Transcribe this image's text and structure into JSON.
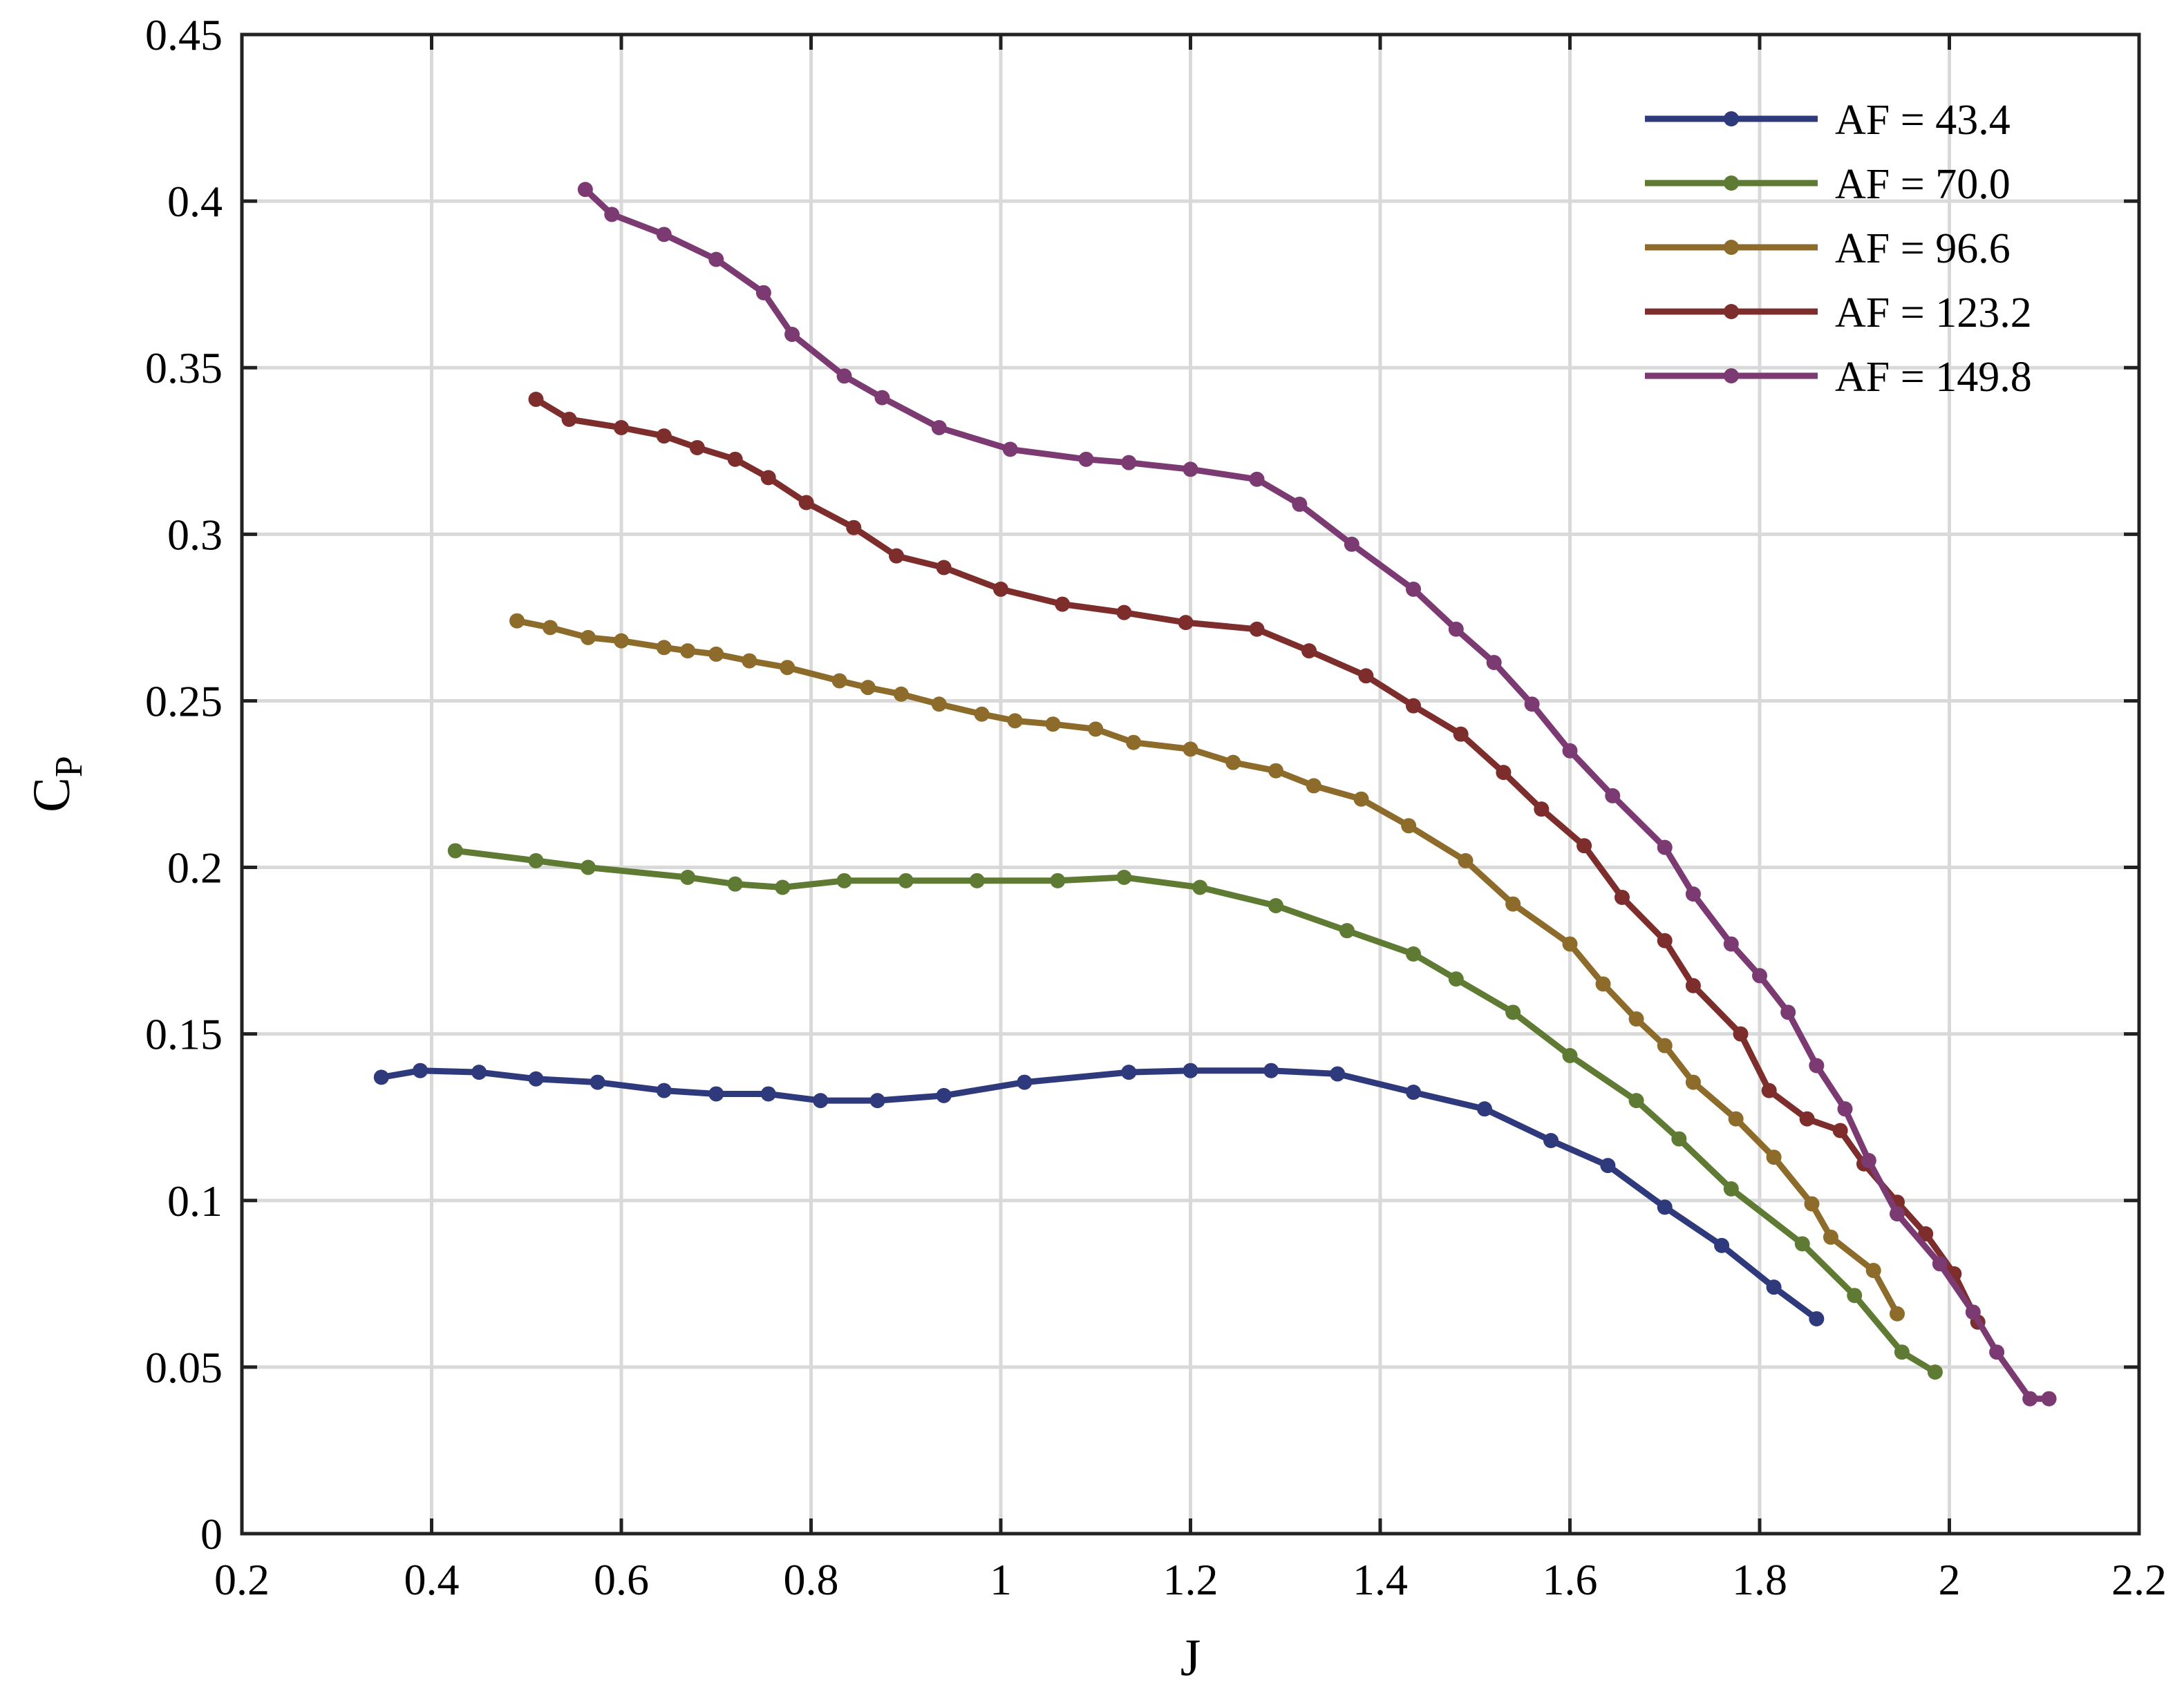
{
  "chart_data": {
    "type": "line",
    "xlabel": "J",
    "ylabel": "C",
    "ylabel_sub": "P",
    "xlim": [
      0.2,
      2.2
    ],
    "ylim": [
      0,
      0.45
    ],
    "xticks": [
      0.2,
      0.4,
      0.6,
      0.8,
      1,
      1.2,
      1.4,
      1.6,
      1.8,
      2,
      2.2
    ],
    "xtick_labels": [
      "0.2",
      "0.4",
      "0.6",
      "0.8",
      "1",
      "1.2",
      "1.4",
      "1.6",
      "1.8",
      "2",
      "2.2"
    ],
    "yticks": [
      0,
      0.05,
      0.1,
      0.15,
      0.2,
      0.25,
      0.3,
      0.35,
      0.4,
      0.45
    ],
    "ytick_labels": [
      "0",
      "0.05",
      "0.1",
      "0.15",
      "0.2",
      "0.25",
      "0.3",
      "0.35",
      "0.4",
      "0.45"
    ],
    "grid": true,
    "legend_position": "top-right",
    "series": [
      {
        "name": "AF = 43.4",
        "color": "#2e3a7c",
        "x": [
          0.347,
          0.388,
          0.45,
          0.51,
          0.575,
          0.645,
          0.7,
          0.755,
          0.81,
          0.87,
          0.94,
          1.025,
          1.135,
          1.2,
          1.285,
          1.355,
          1.435,
          1.51,
          1.58,
          1.64,
          1.7,
          1.76,
          1.815,
          1.86
        ],
        "y": [
          0.137,
          0.139,
          0.1385,
          0.1365,
          0.1355,
          0.133,
          0.132,
          0.132,
          0.13,
          0.13,
          0.1315,
          0.1355,
          0.1385,
          0.139,
          0.139,
          0.138,
          0.1325,
          0.1275,
          0.118,
          0.1105,
          0.098,
          0.0865,
          0.074,
          0.0645
        ]
      },
      {
        "name": "AF = 70.0",
        "color": "#5e7a33",
        "x": [
          0.425,
          0.51,
          0.565,
          0.67,
          0.72,
          0.77,
          0.835,
          0.9,
          0.975,
          1.06,
          1.13,
          1.21,
          1.29,
          1.365,
          1.435,
          1.48,
          1.54,
          1.6,
          1.67,
          1.715,
          1.77,
          1.845,
          1.9,
          1.95,
          1.985
        ],
        "y": [
          0.205,
          0.202,
          0.2,
          0.197,
          0.195,
          0.194,
          0.196,
          0.196,
          0.196,
          0.196,
          0.197,
          0.194,
          0.1885,
          0.181,
          0.174,
          0.1665,
          0.1565,
          0.1435,
          0.13,
          0.1185,
          0.1035,
          0.087,
          0.0715,
          0.0545,
          0.0485
        ]
      },
      {
        "name": "AF = 96.6",
        "color": "#8c6b2b",
        "x": [
          0.49,
          0.525,
          0.565,
          0.6,
          0.645,
          0.67,
          0.7,
          0.735,
          0.775,
          0.83,
          0.86,
          0.895,
          0.935,
          0.98,
          1.015,
          1.055,
          1.1,
          1.14,
          1.2,
          1.245,
          1.29,
          1.33,
          1.38,
          1.43,
          1.49,
          1.54,
          1.6,
          1.635,
          1.67,
          1.7,
          1.73,
          1.775,
          1.815,
          1.855,
          1.875,
          1.92,
          1.945
        ],
        "y": [
          0.274,
          0.272,
          0.269,
          0.268,
          0.266,
          0.265,
          0.264,
          0.262,
          0.26,
          0.256,
          0.254,
          0.252,
          0.249,
          0.246,
          0.244,
          0.243,
          0.2415,
          0.2375,
          0.2355,
          0.2315,
          0.229,
          0.2245,
          0.2205,
          0.2125,
          0.202,
          0.189,
          0.177,
          0.165,
          0.1545,
          0.1465,
          0.1355,
          0.1245,
          0.113,
          0.099,
          0.089,
          0.079,
          0.066
        ]
      },
      {
        "name": "AF = 123.2",
        "color": "#7d2e2c",
        "x": [
          0.51,
          0.545,
          0.6,
          0.645,
          0.68,
          0.72,
          0.755,
          0.795,
          0.845,
          0.89,
          0.94,
          1.0,
          1.065,
          1.13,
          1.195,
          1.27,
          1.325,
          1.385,
          1.435,
          1.485,
          1.53,
          1.57,
          1.615,
          1.655,
          1.7,
          1.73,
          1.78,
          1.81,
          1.85,
          1.885,
          1.91,
          1.945,
          1.975,
          2.005,
          2.03
        ],
        "y": [
          0.3405,
          0.3345,
          0.332,
          0.3295,
          0.326,
          0.3225,
          0.317,
          0.3095,
          0.302,
          0.2935,
          0.29,
          0.2835,
          0.279,
          0.2765,
          0.2735,
          0.2715,
          0.265,
          0.2575,
          0.2485,
          0.24,
          0.2285,
          0.2175,
          0.2065,
          0.191,
          0.178,
          0.1645,
          0.15,
          0.133,
          0.1245,
          0.121,
          0.111,
          0.0995,
          0.09,
          0.078,
          0.0635
        ]
      },
      {
        "name": "AF = 149.8",
        "color": "#7b3b72",
        "x": [
          0.562,
          0.59,
          0.645,
          0.7,
          0.75,
          0.78,
          0.835,
          0.875,
          0.935,
          1.01,
          1.09,
          1.135,
          1.2,
          1.27,
          1.315,
          1.37,
          1.435,
          1.48,
          1.52,
          1.56,
          1.6,
          1.645,
          1.7,
          1.73,
          1.77,
          1.8,
          1.83,
          1.86,
          1.89,
          1.915,
          1.945,
          1.99,
          2.025,
          2.05,
          2.085,
          2.105
        ],
        "y": [
          0.4035,
          0.396,
          0.39,
          0.3825,
          0.3725,
          0.36,
          0.3475,
          0.341,
          0.332,
          0.3255,
          0.3225,
          0.3215,
          0.3195,
          0.3165,
          0.309,
          0.297,
          0.2835,
          0.2715,
          0.2615,
          0.249,
          0.235,
          0.2215,
          0.206,
          0.192,
          0.177,
          0.1675,
          0.1565,
          0.1405,
          0.1275,
          0.112,
          0.096,
          0.081,
          0.0665,
          0.0545,
          0.0405,
          0.0405
        ]
      }
    ]
  }
}
